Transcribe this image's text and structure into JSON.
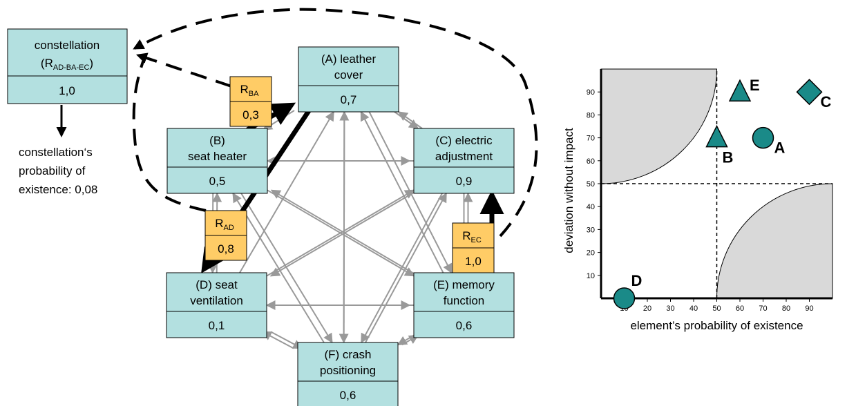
{
  "constellation": {
    "title": "constellation",
    "sub_base": "(R",
    "sub_script": "AD-BA-EC",
    "sub_close": ")",
    "value": "1,0",
    "note_line1": "constellation‘s",
    "note_line2": "probability of",
    "note_line3": "existence: 0,08"
  },
  "nodes": {
    "A": {
      "line1": "(A) leather",
      "line2": "cover",
      "value": "0,7"
    },
    "B": {
      "line1": "(B)",
      "line2": "seat heater",
      "value": "0,5"
    },
    "C": {
      "line1": "(C) electric",
      "line2": "adjustment",
      "value": "0,9"
    },
    "D": {
      "line1": "(D) seat",
      "line2": "ventilation",
      "value": "0,1"
    },
    "E": {
      "line1": "(E) memory",
      "line2": "function",
      "value": "0,6"
    },
    "F": {
      "line1": "(F) crash",
      "line2": "positioning",
      "value": "0,6"
    }
  },
  "relations": {
    "BA": {
      "base": "R",
      "sub": "BA",
      "value": "0,3"
    },
    "AD": {
      "base": "R",
      "sub": "AD",
      "value": "0,8"
    },
    "EC": {
      "base": "R",
      "sub": "EC",
      "value": "1,0"
    }
  },
  "chart_data": {
    "type": "scatter",
    "xlabel": "element’s probability of existence",
    "ylabel": "deviation without impact",
    "xlim": [
      0,
      100
    ],
    "ylim": [
      0,
      100
    ],
    "x_ticks": [
      "10",
      "20",
      "30",
      "40",
      "50",
      "60",
      "70",
      "80",
      "90"
    ],
    "y_ticks": [
      "10",
      "20",
      "30",
      "40",
      "50",
      "60",
      "70",
      "80",
      "90"
    ],
    "dashed_lines": {
      "x": 50,
      "y": 50
    },
    "points": [
      {
        "label": "A",
        "x": 70,
        "y": 70,
        "shape": "circle"
      },
      {
        "label": "B",
        "x": 50,
        "y": 70,
        "shape": "triangle"
      },
      {
        "label": "C",
        "x": 90,
        "y": 90,
        "shape": "diamond"
      },
      {
        "label": "D",
        "x": 10,
        "y": 0,
        "shape": "circle"
      },
      {
        "label": "E",
        "x": 60,
        "y": 90,
        "shape": "triangle"
      }
    ],
    "colors": {
      "marker": "#1a8a88",
      "shading": "#d9d9d9",
      "node_fill": "#b3e0e0",
      "relation_fill": "#ffcc66",
      "edge": "#999999"
    }
  }
}
